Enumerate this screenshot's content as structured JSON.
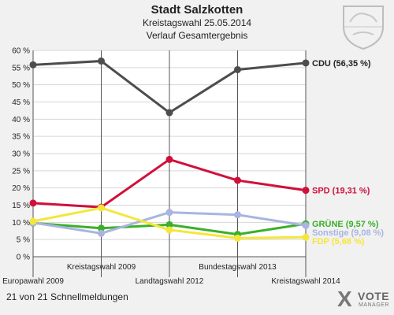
{
  "header": {
    "title": "Stadt Salzkotten",
    "subtitle": "Kreistagswahl 25.05.2014",
    "subtitle2": "Verlauf Gesamtergebnis"
  },
  "footer": {
    "count_text": "21 von 21 Schnellmeldungen"
  },
  "logo": {
    "mark": "X",
    "name": "VOTE",
    "tagline": "MANAGER"
  },
  "chart_data": {
    "type": "line",
    "x": [
      "Europawahl 2009",
      "Kreistagswahl 2009",
      "Landtagswahl 2012",
      "Bundestagswahl 2013",
      "Kreistagswahl 2014"
    ],
    "x_label_rows": [
      "low",
      "high",
      "low",
      "high",
      "low"
    ],
    "ylim": [
      0,
      60
    ],
    "ytick_step": 5,
    "ytick_suffix": " %",
    "grid": true,
    "series": [
      {
        "name": "CDU",
        "end_label": "CDU (56,35 %)",
        "color": "#4d4d4d",
        "label_color": "#222222",
        "values": [
          55.8,
          56.9,
          41.9,
          54.4,
          56.35
        ]
      },
      {
        "name": "SPD",
        "end_label": "SPD (19,31 %)",
        "color": "#d0103a",
        "label_color": "#d0103a",
        "values": [
          15.6,
          14.4,
          28.3,
          22.2,
          19.31
        ]
      },
      {
        "name": "GRÜNE",
        "end_label": "GRÜNE (9,57 %)",
        "color": "#3ab02a",
        "label_color": "#3ab02a",
        "values": [
          9.8,
          8.3,
          9.3,
          6.5,
          9.57
        ]
      },
      {
        "name": "Sonstige",
        "end_label": "Sonstige (9,08 %)",
        "color": "#a9b4e0",
        "label_color": "#a9b4e0",
        "values": [
          9.9,
          6.8,
          12.9,
          12.2,
          9.08
        ]
      },
      {
        "name": "FDP",
        "end_label": "FDP (5,68 %)",
        "color": "#f5e63a",
        "label_color": "#f5e63a",
        "values": [
          10.3,
          14.2,
          7.8,
          5.4,
          5.68
        ]
      }
    ]
  }
}
